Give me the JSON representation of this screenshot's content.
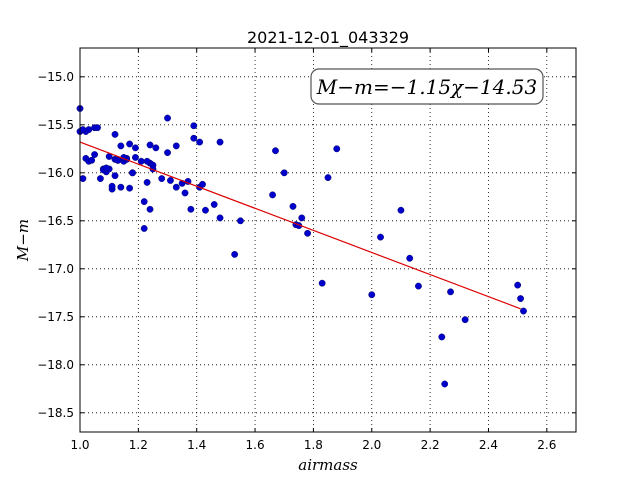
{
  "chart_data": {
    "type": "scatter",
    "title": "2021-12-01_043329",
    "xlabel": "airmass",
    "ylabel": "M−m",
    "xlim": [
      1.0,
      2.7
    ],
    "ylim": [
      -18.7,
      -14.7
    ],
    "y_inverted": true,
    "grid": true,
    "xticks": [
      "1.0",
      "1.2",
      "1.4",
      "1.6",
      "1.8",
      "2.0",
      "2.2",
      "2.4",
      "2.6"
    ],
    "yticks": [
      "−15.0",
      "−15.5",
      "−16.0",
      "−16.5",
      "−17.0",
      "−17.5",
      "−18.0",
      "−18.5"
    ],
    "annotation": "M−m=−1.15χ−14.53",
    "colors": {
      "points": "#0000cc",
      "fit": "#dd0000"
    },
    "fit_line": {
      "slope": -1.15,
      "intercept": -14.53,
      "x": [
        1.0,
        2.51
      ]
    },
    "points": {
      "x": [
        1.0,
        1.0,
        1.02,
        1.03,
        1.05,
        1.06,
        1.01,
        1.02,
        1.03,
        1.05,
        1.07,
        1.08,
        1.09,
        1.1,
        1.1,
        1.12,
        1.12,
        1.13,
        1.14,
        1.15,
        1.16,
        1.17,
        1.18,
        1.19,
        1.19,
        1.11,
        1.12,
        1.14,
        1.16,
        1.17,
        1.18,
        1.21,
        1.22,
        1.23,
        1.24,
        1.24,
        1.25,
        1.26,
        1.23,
        1.22,
        1.24,
        1.25,
        1.28,
        1.3,
        1.31,
        1.33,
        1.33,
        1.35,
        1.36,
        1.37,
        1.3,
        1.39,
        1.41,
        1.41,
        1.42,
        1.43,
        1.46,
        1.48,
        1.48,
        1.38,
        1.39,
        1.53,
        1.55,
        1.66,
        1.67,
        1.7,
        1.73,
        1.74,
        1.75,
        1.76,
        1.78,
        1.83,
        1.85,
        1.88,
        2.0,
        2.03,
        2.1,
        2.13,
        2.16,
        2.24,
        2.25,
        2.27,
        2.32,
        2.5,
        2.51,
        2.52,
        1.01,
        1.04,
        1.08,
        1.09,
        1.11,
        1.13,
        1.15
      ],
      "y": [
        -15.33,
        -15.57,
        -15.57,
        -15.55,
        -15.53,
        -15.53,
        -16.06,
        -15.85,
        -15.88,
        -15.81,
        -16.06,
        -15.96,
        -15.99,
        -15.96,
        -15.83,
        -15.6,
        -15.86,
        -15.87,
        -15.72,
        -15.88,
        -15.85,
        -15.7,
        -16.0,
        -15.74,
        -15.84,
        -16.17,
        -16.03,
        -16.15,
        -15.86,
        -16.16,
        -16.0,
        -15.88,
        -16.58,
        -16.1,
        -15.9,
        -15.71,
        -15.92,
        -15.74,
        -15.88,
        -16.3,
        -16.38,
        -15.96,
        -16.06,
        -15.43,
        -16.08,
        -16.15,
        -15.72,
        -16.11,
        -16.21,
        -16.09,
        -15.79,
        -15.51,
        -16.15,
        -15.68,
        -16.12,
        -16.39,
        -16.33,
        -15.68,
        -16.47,
        -16.38,
        -15.64,
        -16.85,
        -16.5,
        -16.23,
        -15.77,
        -16.0,
        -16.35,
        -16.54,
        -16.55,
        -16.47,
        -16.63,
        -17.15,
        -16.05,
        -15.75,
        -17.27,
        -16.67,
        -16.39,
        -16.89,
        -17.18,
        -17.71,
        -18.2,
        -17.24,
        -17.53,
        -17.17,
        -17.31,
        -17.44,
        -15.55,
        -15.87,
        -15.97,
        -15.95,
        -16.14,
        -15.87,
        -15.84
      ]
    }
  }
}
